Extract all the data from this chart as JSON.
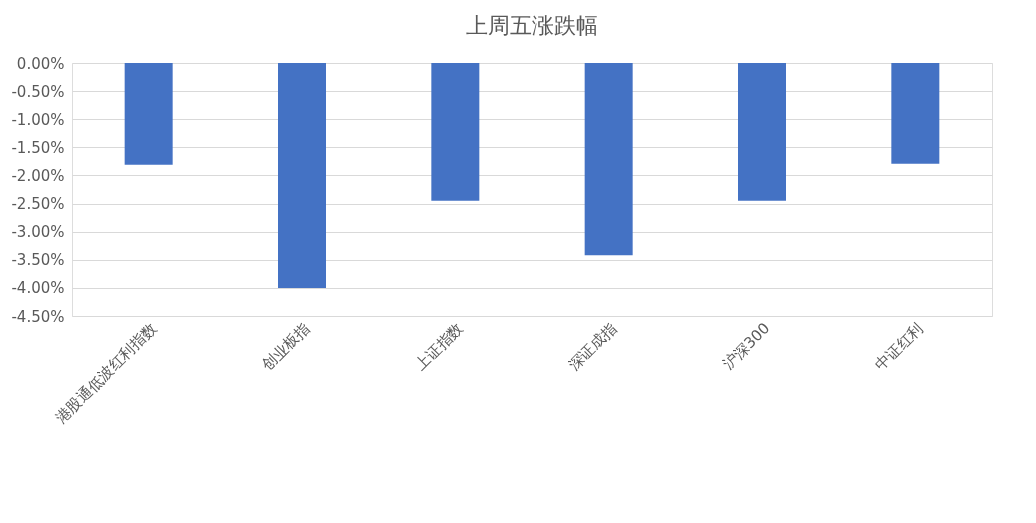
{
  "chart_data": {
    "type": "bar",
    "title": "上周五涨跌幅",
    "categories": [
      "港股通低波红利指数",
      "创业板指",
      "上证指数",
      "深证成指",
      "沪深300",
      "中证红利"
    ],
    "values": [
      -1.81,
      -4.0,
      -2.45,
      -3.42,
      -2.45,
      -1.79
    ],
    "color": "#4472c4",
    "ylim": [
      -4.5,
      0
    ],
    "yticks": [
      {
        "value": 0,
        "label": "0.00%"
      },
      {
        "value": -0.5,
        "label": "-0.50%"
      },
      {
        "value": -1,
        "label": "-1.00%"
      },
      {
        "value": -1.5,
        "label": "-1.50%"
      },
      {
        "value": -2,
        "label": "-2.00%"
      },
      {
        "value": -2.5,
        "label": "-2.50%"
      },
      {
        "value": -3,
        "label": "-3.00%"
      },
      {
        "value": -3.5,
        "label": "-3.50%"
      },
      {
        "value": -4,
        "label": "-4.00%"
      },
      {
        "value": -4.5,
        "label": "-4.50%"
      }
    ],
    "grid": "y"
  }
}
